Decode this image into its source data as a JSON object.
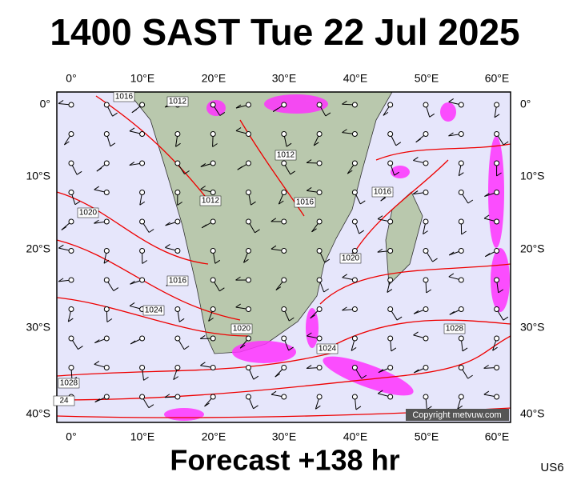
{
  "title": "1400 SAST Tue 22 Jul 2025",
  "longitude_labels": [
    "0°",
    "10°E",
    "20°E",
    "30°E",
    "40°E",
    "50°E",
    "60°E"
  ],
  "latitude_labels": [
    "0°",
    "10°S",
    "20°S",
    "30°S",
    "40°S"
  ],
  "isobar_labels": [
    "1016",
    "1012",
    "1012",
    "1012",
    "1016",
    "1016",
    "1020",
    "1020",
    "1016",
    "1024",
    "1020",
    "1024",
    "1028",
    "1028",
    "24"
  ],
  "copyright": "Copyright metvuw.com",
  "footer": "Forecast +138 hr",
  "code": "US6"
}
